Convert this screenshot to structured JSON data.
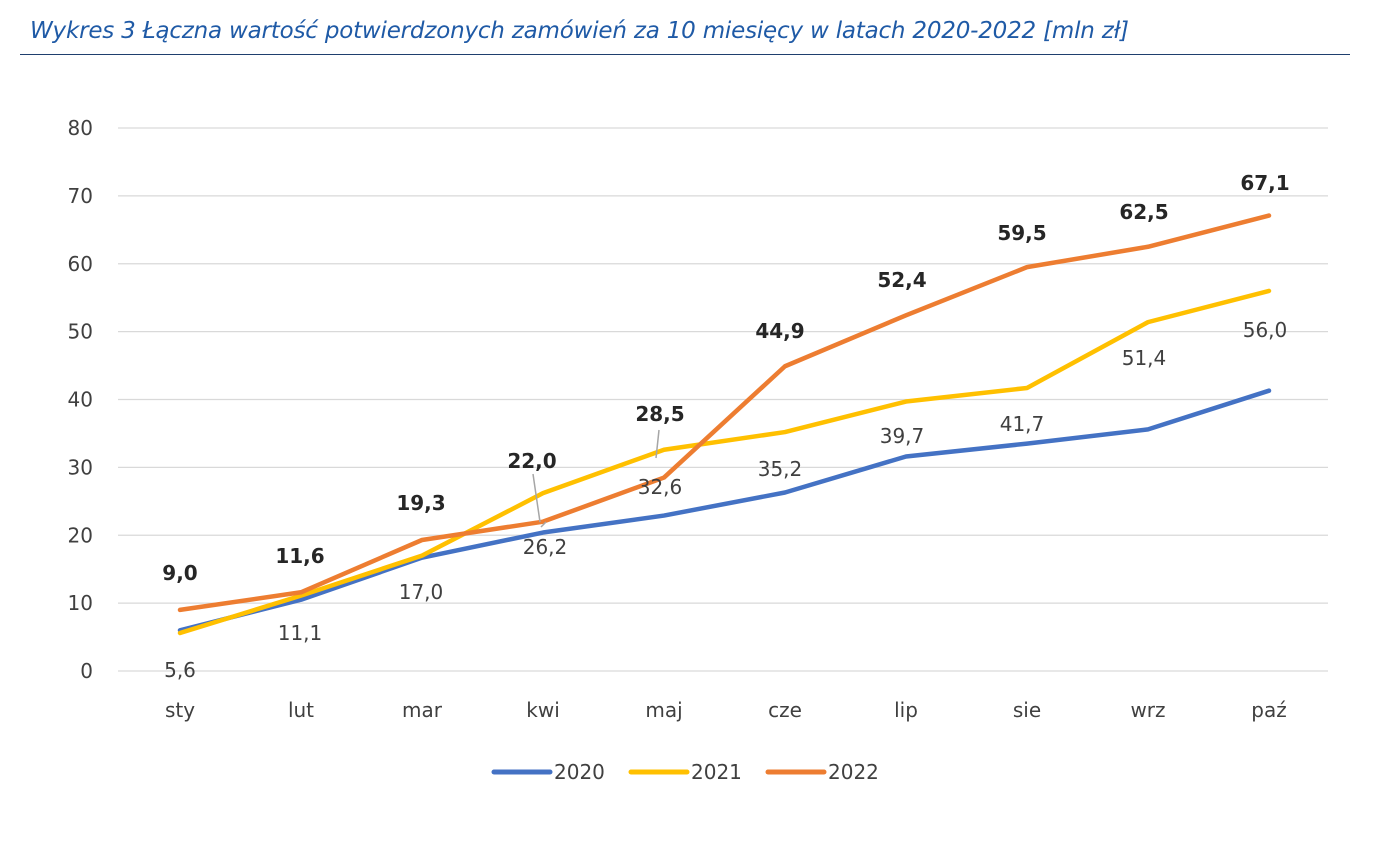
{
  "title": "Wykres 3 Łączna wartość potwierdzonych zamówień  za 10 miesięcy w latach 2020-2022 [mln zł]",
  "colors": {
    "title": "#1f5aa6",
    "grid": "#d9d9d9",
    "text": "#404040"
  },
  "chart_data": {
    "type": "line",
    "categories": [
      "sty",
      "lut",
      "mar",
      "kwi",
      "maj",
      "cze",
      "lip",
      "sie",
      "wrz",
      "paź"
    ],
    "ylim": [
      0,
      80
    ],
    "yticks": [
      0,
      10,
      20,
      30,
      40,
      50,
      60,
      70,
      80
    ],
    "grid": true,
    "legend_position": "bottom",
    "series": [
      {
        "name": "2020",
        "color": "#4472c4",
        "values": [
          6.0,
          10.5,
          16.7,
          20.4,
          22.9,
          26.3,
          31.6,
          33.5,
          35.6,
          41.3
        ],
        "labels": [],
        "bold": false
      },
      {
        "name": "2021",
        "color": "#ffc000",
        "values": [
          5.6,
          11.1,
          17.0,
          26.2,
          32.6,
          35.2,
          39.7,
          41.7,
          51.4,
          56.0
        ],
        "labels": [
          "5,6",
          "11,1",
          "17,0",
          "26,2",
          "32,6",
          "35,2",
          "39,7",
          "41,7",
          "51,4",
          "56,0"
        ],
        "bold": false
      },
      {
        "name": "2022",
        "color": "#ed7d31",
        "values": [
          9.0,
          11.6,
          19.3,
          22.0,
          28.5,
          44.9,
          52.4,
          59.5,
          62.5,
          67.1
        ],
        "labels": [
          "9,0",
          "11,6",
          "19,3",
          "22,0",
          "28,5",
          "44,9",
          "52,4",
          "59,5",
          "62,5",
          "67,1"
        ],
        "bold": true
      }
    ]
  }
}
